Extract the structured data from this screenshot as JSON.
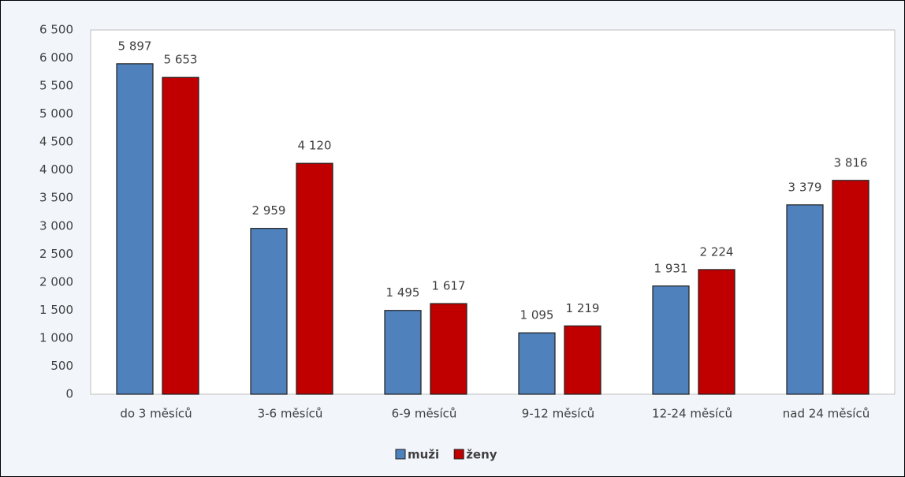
{
  "chart_data": {
    "type": "bar",
    "categories": [
      "do 3 měsíců",
      "3-6 měsíců",
      "6-9 měsíců",
      "9-12 měsíců",
      "12-24 měsíců",
      "nad 24 měsíců"
    ],
    "series": [
      {
        "name": "muži",
        "color": "#4f81bd",
        "values": [
          5897,
          2959,
          1495,
          1095,
          1931,
          3379
        ],
        "value_labels": [
          "5 897",
          "2 959",
          "1 495",
          "1 095",
          "1 931",
          "3 379"
        ]
      },
      {
        "name": "ženy",
        "color": "#c00000",
        "values": [
          5653,
          4120,
          1617,
          1219,
          2224,
          3816
        ],
        "value_labels": [
          "5 653",
          "4 120",
          "1 617",
          "1 219",
          "2 224",
          "3 816"
        ]
      }
    ],
    "ylim": [
      0,
      6500
    ],
    "yticks": [
      0,
      500,
      {
        "value": 1000,
        "label": "1 000"
      },
      {
        "value": 1500,
        "label": "1 500"
      },
      {
        "value": 2000,
        "label": "2 000"
      },
      {
        "value": 2500,
        "label": "2 500"
      },
      {
        "value": 3000,
        "label": "3 000"
      },
      {
        "value": 3500,
        "label": "3 500"
      },
      {
        "value": 4000,
        "label": "4 000"
      },
      {
        "value": 4500,
        "label": "4 500"
      },
      {
        "value": 5000,
        "label": "5 000"
      },
      {
        "value": 5500,
        "label": "5 500"
      },
      {
        "value": 6000,
        "label": "6 000"
      },
      {
        "value": 6500,
        "label": "6 500"
      }
    ],
    "grid": false,
    "legend": "bottom"
  }
}
